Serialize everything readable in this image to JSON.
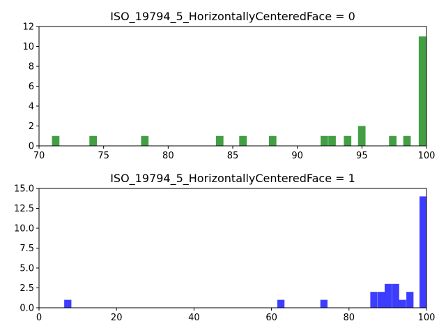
{
  "chart_data": [
    {
      "type": "bar",
      "title": "ISO_19794_5_HorizontallyCenteredFace = 0",
      "color": "#3a9a3a",
      "xlim": [
        70,
        100
      ],
      "ylim": [
        0,
        12
      ],
      "xticks": [
        70,
        75,
        80,
        85,
        90,
        95,
        100
      ],
      "xtick_labels": [
        "70",
        "75",
        "80",
        "85",
        "90",
        "95",
        "100"
      ],
      "yticks": [
        0,
        2,
        4,
        6,
        8,
        10,
        12
      ],
      "ytick_labels": [
        "0",
        "2",
        "4",
        "6",
        "8",
        "10",
        "12"
      ],
      "bin_width": 0.58,
      "bins": [
        {
          "x": 71.0,
          "value": 1
        },
        {
          "x": 73.9,
          "value": 1
        },
        {
          "x": 77.9,
          "value": 1
        },
        {
          "x": 83.7,
          "value": 1
        },
        {
          "x": 85.5,
          "value": 1
        },
        {
          "x": 87.8,
          "value": 1
        },
        {
          "x": 91.8,
          "value": 1
        },
        {
          "x": 92.4,
          "value": 1
        },
        {
          "x": 93.6,
          "value": 1
        },
        {
          "x": 94.7,
          "value": 2
        },
        {
          "x": 97.1,
          "value": 1
        },
        {
          "x": 98.2,
          "value": 1
        },
        {
          "x": 99.4,
          "value": 11
        }
      ]
    },
    {
      "type": "bar",
      "title": "ISO_19794_5_HorizontallyCenteredFace = 1",
      "color": "#3333ff",
      "xlim": [
        0,
        100
      ],
      "ylim": [
        0,
        15
      ],
      "xticks": [
        0,
        20,
        40,
        60,
        80,
        100
      ],
      "xtick_labels": [
        "0",
        "20",
        "40",
        "60",
        "80",
        "100"
      ],
      "yticks": [
        0,
        2.5,
        5,
        7.5,
        10,
        12.5,
        15
      ],
      "ytick_labels": [
        "0.0",
        "2.5",
        "5.0",
        "7.5",
        "10.0",
        "12.5",
        "15.0"
      ],
      "bin_width": 1.85,
      "bins": [
        {
          "x": 6.5,
          "value": 1
        },
        {
          "x": 61.5,
          "value": 1
        },
        {
          "x": 72.6,
          "value": 1
        },
        {
          "x": 85.5,
          "value": 2
        },
        {
          "x": 87.4,
          "value": 2
        },
        {
          "x": 89.2,
          "value": 3
        },
        {
          "x": 91.1,
          "value": 3
        },
        {
          "x": 92.9,
          "value": 1
        },
        {
          "x": 94.8,
          "value": 2
        },
        {
          "x": 98.2,
          "value": 14
        }
      ]
    }
  ]
}
